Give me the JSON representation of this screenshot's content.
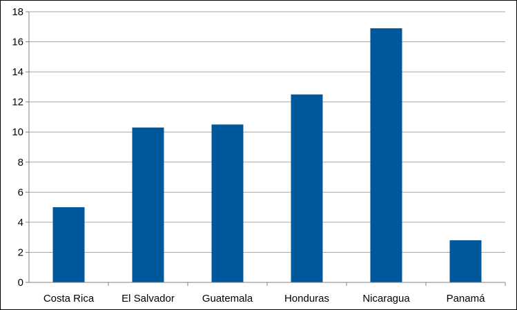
{
  "chart_data": {
    "type": "bar",
    "categories": [
      "Costa Rica",
      "El Salvador",
      "Guatemala",
      "Honduras",
      "Nicaragua",
      "Panamá"
    ],
    "values": [
      5.0,
      10.3,
      10.5,
      12.5,
      16.9,
      2.8
    ],
    "title": "",
    "xlabel": "",
    "ylabel": "",
    "ylim": [
      0,
      18
    ],
    "yticks": [
      0,
      2,
      4,
      6,
      8,
      10,
      12,
      14,
      16,
      18
    ],
    "grid": true,
    "legend": "none",
    "bar_color": "#00589c",
    "grid_color": "#a6a6a6"
  }
}
